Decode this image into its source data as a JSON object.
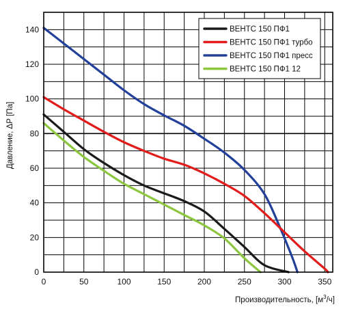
{
  "chart_data": {
    "type": "line",
    "title": "",
    "xlabel": "Производительность, [м³/ч]",
    "xlabel_parts": {
      "main": "Производительность, [м",
      "sup": "3",
      "tail": "/ч]"
    },
    "ylabel": "Давление, ΔР [Па]",
    "xlim": [
      0,
      360
    ],
    "ylim": [
      0,
      150
    ],
    "xticks": [
      0,
      50,
      100,
      150,
      200,
      250,
      300,
      350
    ],
    "yticks": [
      0,
      20,
      40,
      60,
      80,
      100,
      120,
      140
    ],
    "x_grid_step": 25,
    "y_grid_step": 10,
    "major_y_gridline": 80,
    "grid": true,
    "legend_position": "top-right",
    "series": [
      {
        "name": "ВЕНТС 150 ПФ1",
        "color": "#1a1a1a",
        "points": [
          [
            0,
            91
          ],
          [
            25,
            81
          ],
          [
            50,
            71
          ],
          [
            75,
            63
          ],
          [
            100,
            56
          ],
          [
            125,
            50
          ],
          [
            150,
            45.5
          ],
          [
            175,
            41
          ],
          [
            200,
            35
          ],
          [
            225,
            25
          ],
          [
            250,
            14.5
          ],
          [
            275,
            4
          ],
          [
            305,
            0
          ]
        ]
      },
      {
        "name": "ВЕНТС 150 ПФ1 турбо",
        "color": "#e21b1b",
        "points": [
          [
            0,
            101
          ],
          [
            25,
            94
          ],
          [
            50,
            87.5
          ],
          [
            75,
            81
          ],
          [
            100,
            75
          ],
          [
            125,
            70
          ],
          [
            150,
            65.5
          ],
          [
            175,
            62
          ],
          [
            200,
            57
          ],
          [
            225,
            51
          ],
          [
            250,
            44
          ],
          [
            275,
            34
          ],
          [
            300,
            23
          ],
          [
            325,
            12
          ],
          [
            350,
            2
          ],
          [
            354,
            0
          ]
        ]
      },
      {
        "name": "ВЕНТС 150 ПФ1 пресс",
        "color": "#22409a",
        "points": [
          [
            0,
            141
          ],
          [
            25,
            132
          ],
          [
            50,
            123
          ],
          [
            75,
            114
          ],
          [
            100,
            105
          ],
          [
            125,
            97
          ],
          [
            150,
            90.5
          ],
          [
            175,
            84.5
          ],
          [
            200,
            77
          ],
          [
            225,
            69
          ],
          [
            250,
            59
          ],
          [
            275,
            45
          ],
          [
            295,
            25
          ],
          [
            310,
            8
          ],
          [
            316,
            0
          ]
        ]
      },
      {
        "name": "ВЕНТС 150 ПФ1 12",
        "color": "#8cc63e",
        "points": [
          [
            0,
            86
          ],
          [
            25,
            76
          ],
          [
            50,
            66.5
          ],
          [
            75,
            58.5
          ],
          [
            100,
            51
          ],
          [
            125,
            45
          ],
          [
            150,
            39
          ],
          [
            175,
            33
          ],
          [
            200,
            27
          ],
          [
            225,
            19.5
          ],
          [
            250,
            8
          ],
          [
            270,
            0
          ]
        ]
      }
    ]
  }
}
